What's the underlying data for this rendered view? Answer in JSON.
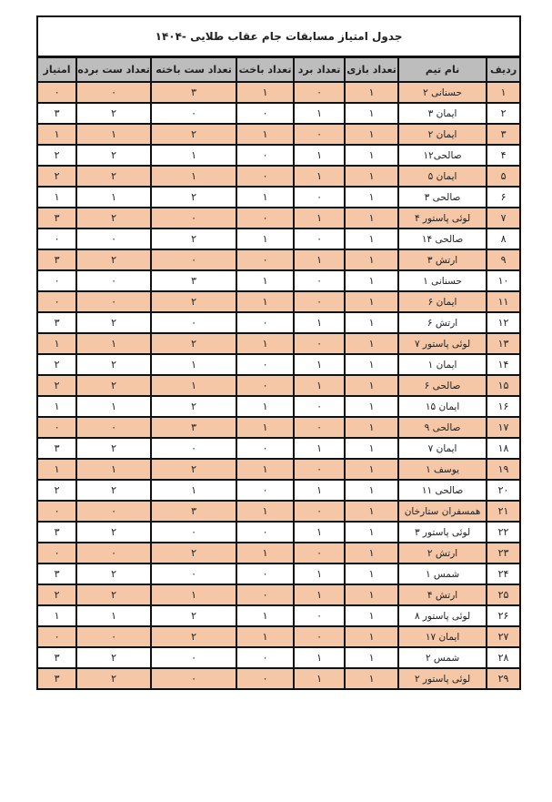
{
  "title": "جدول امتیاز مسابقات جام عقاب طلایی -۱۴۰۴",
  "headers": [
    "ردیف",
    "نام تیم",
    "تعداد بازی",
    "تعداد برد",
    "تعداد باخت",
    "تعداد ست باخته",
    "تعداد ست برده",
    "امتیاز"
  ],
  "colors": {
    "odd_row": "#f6c7a6",
    "even_row": "#ffffff",
    "header": "#bdbdbd",
    "border": "#111111"
  },
  "rows": [
    [
      "۱",
      "حسنانی ۲",
      "۱",
      "۰",
      "۱",
      "۳",
      "۰",
      "۰"
    ],
    [
      "۲",
      "ایمان ۳",
      "۱",
      "۱",
      "۰",
      "۰",
      "۲",
      "۳"
    ],
    [
      "۳",
      "ایمان ۲",
      "۱",
      "۰",
      "۱",
      "۲",
      "۱",
      "۱"
    ],
    [
      "۴",
      "صالحی۱۲",
      "۱",
      "۱",
      "۰",
      "۱",
      "۲",
      "۲"
    ],
    [
      "۵",
      "ایمان ۵",
      "۱",
      "۱",
      "۰",
      "۱",
      "۲",
      "۲"
    ],
    [
      "۶",
      "صالحی ۳",
      "۱",
      "۰",
      "۱",
      "۲",
      "۱",
      "۱"
    ],
    [
      "۷",
      "لوئی پاستور ۴",
      "۱",
      "۱",
      "۰",
      "۰",
      "۲",
      "۳"
    ],
    [
      "۸",
      "صالحی ۱۴",
      "۱",
      "۰",
      "۱",
      "۲",
      "۰",
      "۰"
    ],
    [
      "۹",
      "ارتش ۳",
      "۱",
      "۱",
      "۰",
      "۰",
      "۲",
      "۳"
    ],
    [
      "۱۰",
      "حسنانی ۱",
      "۱",
      "۰",
      "۱",
      "۳",
      "۰",
      "۰"
    ],
    [
      "۱۱",
      "ایمان ۶",
      "۱",
      "۰",
      "۱",
      "۲",
      "۰",
      "۰"
    ],
    [
      "۱۲",
      "ارتش ۶",
      "۱",
      "۱",
      "۰",
      "۰",
      "۲",
      "۳"
    ],
    [
      "۱۳",
      "لوئی پاستور ۷",
      "۱",
      "۰",
      "۱",
      "۲",
      "۱",
      "۱"
    ],
    [
      "۱۴",
      "ایمان ۱",
      "۱",
      "۱",
      "۰",
      "۱",
      "۲",
      "۲"
    ],
    [
      "۱۵",
      "صالحی ۶",
      "۱",
      "۱",
      "۰",
      "۱",
      "۲",
      "۲"
    ],
    [
      "۱۶",
      "ایمان ۱۵",
      "۱",
      "۰",
      "۱",
      "۲",
      "۱",
      "۱"
    ],
    [
      "۱۷",
      "صالحی ۹",
      "۱",
      "۰",
      "۱",
      "۳",
      "۰",
      "۰"
    ],
    [
      "۱۸",
      "ایمان ۷",
      "۱",
      "۱",
      "۰",
      "۰",
      "۲",
      "۳"
    ],
    [
      "۱۹",
      "یوسف ۱",
      "۱",
      "۰",
      "۱",
      "۲",
      "۱",
      "۱"
    ],
    [
      "۲۰",
      "صالحی ۱۱",
      "۱",
      "۱",
      "۰",
      "۱",
      "۲",
      "۲"
    ],
    [
      "۲۱",
      "همسفران ستارخان",
      "۱",
      "۰",
      "۱",
      "۳",
      "۰",
      "۰"
    ],
    [
      "۲۲",
      "لوئی پاستور ۳",
      "۱",
      "۱",
      "۰",
      "۰",
      "۲",
      "۳"
    ],
    [
      "۲۳",
      "ارتش ۲",
      "۱",
      "۰",
      "۱",
      "۲",
      "۰",
      "۰"
    ],
    [
      "۲۴",
      "شمس ۱",
      "۱",
      "۱",
      "۰",
      "۰",
      "۲",
      "۳"
    ],
    [
      "۲۵",
      "ارتش ۴",
      "۱",
      "۱",
      "۰",
      "۱",
      "۲",
      "۲"
    ],
    [
      "۲۶",
      "لوئی پاستور ۸",
      "۱",
      "۰",
      "۱",
      "۲",
      "۱",
      "۱"
    ],
    [
      "۲۷",
      "ایمان ۱۷",
      "۱",
      "۰",
      "۱",
      "۲",
      "۰",
      "۰"
    ],
    [
      "۲۸",
      "شمس ۲",
      "۱",
      "۱",
      "۰",
      "۰",
      "۲",
      "۳"
    ],
    [
      "۲۹",
      "لوئی پاستور ۲",
      "۱",
      "۱",
      "۰",
      "۰",
      "۲",
      "۳"
    ]
  ]
}
